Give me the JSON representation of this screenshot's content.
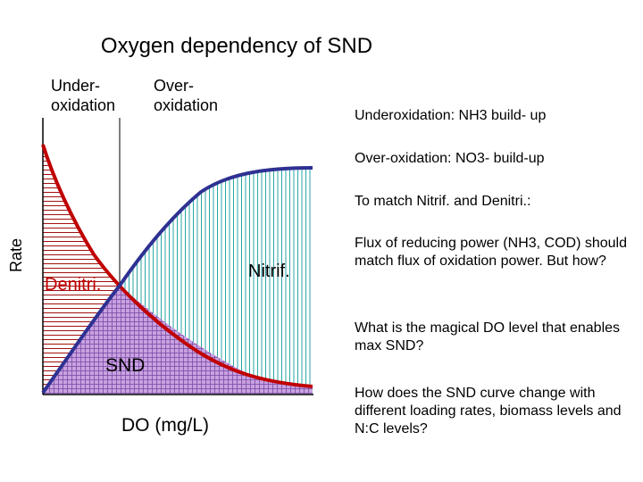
{
  "title": "Oxygen dependency of SND",
  "zones": {
    "under_label": [
      "Under-",
      "oxidation"
    ],
    "over_label": [
      "Over-",
      "oxidation"
    ]
  },
  "axes": {
    "y_label": "Rate",
    "x_label": "DO (mg/L)"
  },
  "curves": {
    "denitrification_label": "Denitri.",
    "nitrification_label": "Nitrif.",
    "snd_label": "SND"
  },
  "notes": [
    "Underoxidation: NH3 build- up",
    "Over-oxidation: NO3- build-up",
    "To match Nitrif. and Denitri.:",
    "Flux of reducing power (NH3, COD) should match flux of oxidation power. But how?",
    "What is the magical DO level that enables max SND?",
    "How does the SND curve change with different loading rates, biomass levels and N:C levels?"
  ],
  "colors": {
    "denitrification_curve": "#c00000",
    "nitrification_curve": "#2e3192",
    "denitri_hatch": "#a01010",
    "nitrif_hatch": "#2aa6a6",
    "snd_fill": "#c8a2e0",
    "snd_grid": "#7b4aa6",
    "axis": "#000000"
  }
}
